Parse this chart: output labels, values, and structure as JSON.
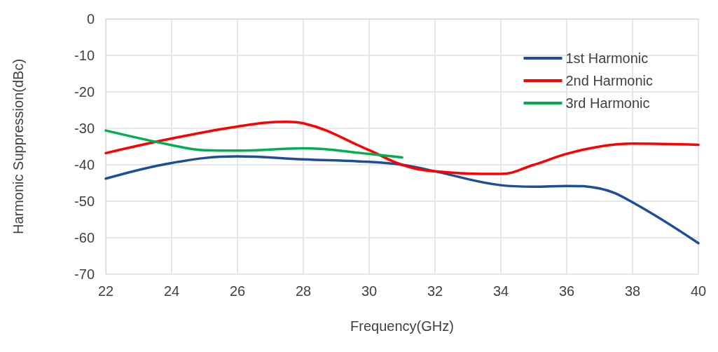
{
  "chart_data": {
    "type": "line",
    "xlabel": "Frequency(GHz)",
    "ylabel": "Harmonic Suppression(dBc)",
    "xlim": [
      22,
      40
    ],
    "xticks": [
      22,
      24,
      26,
      28,
      30,
      32,
      34,
      36,
      38,
      40
    ],
    "ylim": [
      -70,
      0
    ],
    "yticks": [
      -70,
      -60,
      -50,
      -40,
      -30,
      -20,
      -10,
      0
    ],
    "grid": true,
    "legend": "top right",
    "marker": "none",
    "line_style": "solid",
    "series": [
      {
        "name": "1st Harmonic",
        "color": "#1f4e99",
        "x": [
          22,
          24,
          26,
          28,
          30,
          31,
          32,
          34,
          35,
          36,
          37,
          38,
          40
        ],
        "values": [
          -43.8,
          -39.5,
          -37.7,
          -38.5,
          -39.2,
          -40,
          -41.8,
          -45.6,
          -46,
          -45.8,
          -46.5,
          -50.3,
          -61.5
        ]
      },
      {
        "name": "2nd Harmonic",
        "color": "#ff0000",
        "x": [
          22,
          24,
          26,
          27.5,
          28,
          30,
          31,
          32,
          34,
          35,
          36,
          37,
          38,
          40
        ],
        "values": [
          -36.8,
          -32.8,
          -29.5,
          -28.2,
          -28.6,
          -36,
          -40,
          -41.8,
          -42.5,
          -40,
          -37,
          -35,
          -34.2,
          -34.5
        ]
      },
      {
        "name": "3rd Harmonic",
        "color": "#00b050",
        "x": [
          22,
          24,
          25,
          26,
          28,
          30,
          31
        ],
        "values": [
          -30.6,
          -34.6,
          -36,
          -36.1,
          -35.5,
          -37,
          -38
        ]
      }
    ]
  }
}
